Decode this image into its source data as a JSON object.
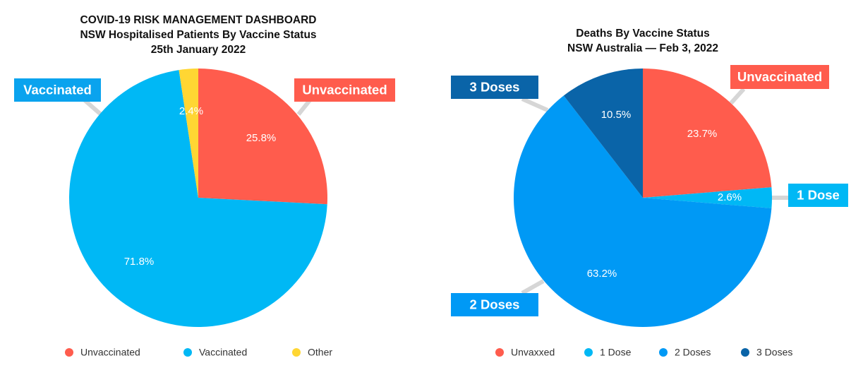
{
  "chart_data": [
    {
      "type": "pie",
      "title": [
        "COVID-19 RISK MANAGEMENT DASHBOARD",
        "NSW Hospitalised Patients By Vaccine Status",
        "25th January 2022"
      ],
      "slices": [
        {
          "name": "Unvaccinated",
          "value": 25.8,
          "label": "25.8%",
          "color": "#ff5c4d"
        },
        {
          "name": "Vaccinated",
          "value": 71.8,
          "label": "71.8%",
          "color": "#00b8f5"
        },
        {
          "name": "Other",
          "value": 2.4,
          "label": "2.4%",
          "color": "#ffd633"
        }
      ],
      "callouts": [
        {
          "text": "Unvaccinated",
          "color": "#ff5c4d"
        },
        {
          "text": "Vaccinated",
          "color": "#0aa3ee"
        }
      ],
      "legend": [
        "Unvaccinated",
        "Vaccinated",
        "Other"
      ],
      "legend_position": "bottom"
    },
    {
      "type": "pie",
      "title": [
        "Deaths By Vaccine Status",
        "NSW Australia — Feb 3, 2022"
      ],
      "slices": [
        {
          "name": "Unvaxxed",
          "value": 23.7,
          "label": "23.7%",
          "color": "#ff5c4d"
        },
        {
          "name": "1 Dose",
          "value": 2.6,
          "label": "2.6%",
          "color": "#00b8f5"
        },
        {
          "name": "2 Doses",
          "value": 63.2,
          "label": "63.2%",
          "color": "#0099f5"
        },
        {
          "name": "3 Doses",
          "value": 10.5,
          "label": "10.5%",
          "color": "#0a64a8"
        }
      ],
      "callouts": [
        {
          "text": "Unvaccinated",
          "color": "#ff5c4d"
        },
        {
          "text": "1 Dose",
          "color": "#00b8f5"
        },
        {
          "text": "2 Doses",
          "color": "#0099f5"
        },
        {
          "text": "3 Doses",
          "color": "#0a64a8"
        }
      ],
      "legend": [
        "Unvaxxed",
        "1 Dose",
        "2 Doses",
        "3 Doses"
      ],
      "legend_position": "bottom"
    }
  ]
}
